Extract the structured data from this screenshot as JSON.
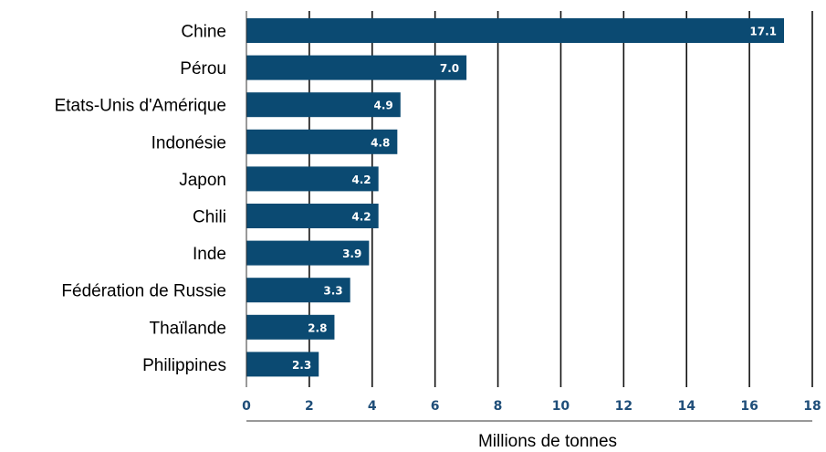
{
  "chart_data": {
    "type": "bar",
    "orientation": "horizontal",
    "categories": [
      "Chine",
      "Pérou",
      "Etats-Unis d'Amérique",
      "Indonésie",
      "Japon",
      "Chili",
      "Inde",
      "Fédération de Russie",
      "Thaïlande",
      "Philippines"
    ],
    "values": [
      17.1,
      7.0,
      4.9,
      4.8,
      4.2,
      4.2,
      3.9,
      3.3,
      2.8,
      2.3
    ],
    "value_labels": [
      "17.1",
      "7.0",
      "4.9",
      "4.8",
      "4.2",
      "4.2",
      "3.9",
      "3.3",
      "2.8",
      "2.3"
    ],
    "xlabel": "Millions de tonnes",
    "xlim": [
      0,
      18
    ],
    "xticks": [
      0,
      2,
      4,
      6,
      8,
      10,
      12,
      14,
      16,
      18
    ],
    "grid": "vertical",
    "colors": {
      "bar": "#0b4a72",
      "grid": "#111111",
      "tick_text": "#1f4e79",
      "value_text": "#ffffff"
    }
  }
}
